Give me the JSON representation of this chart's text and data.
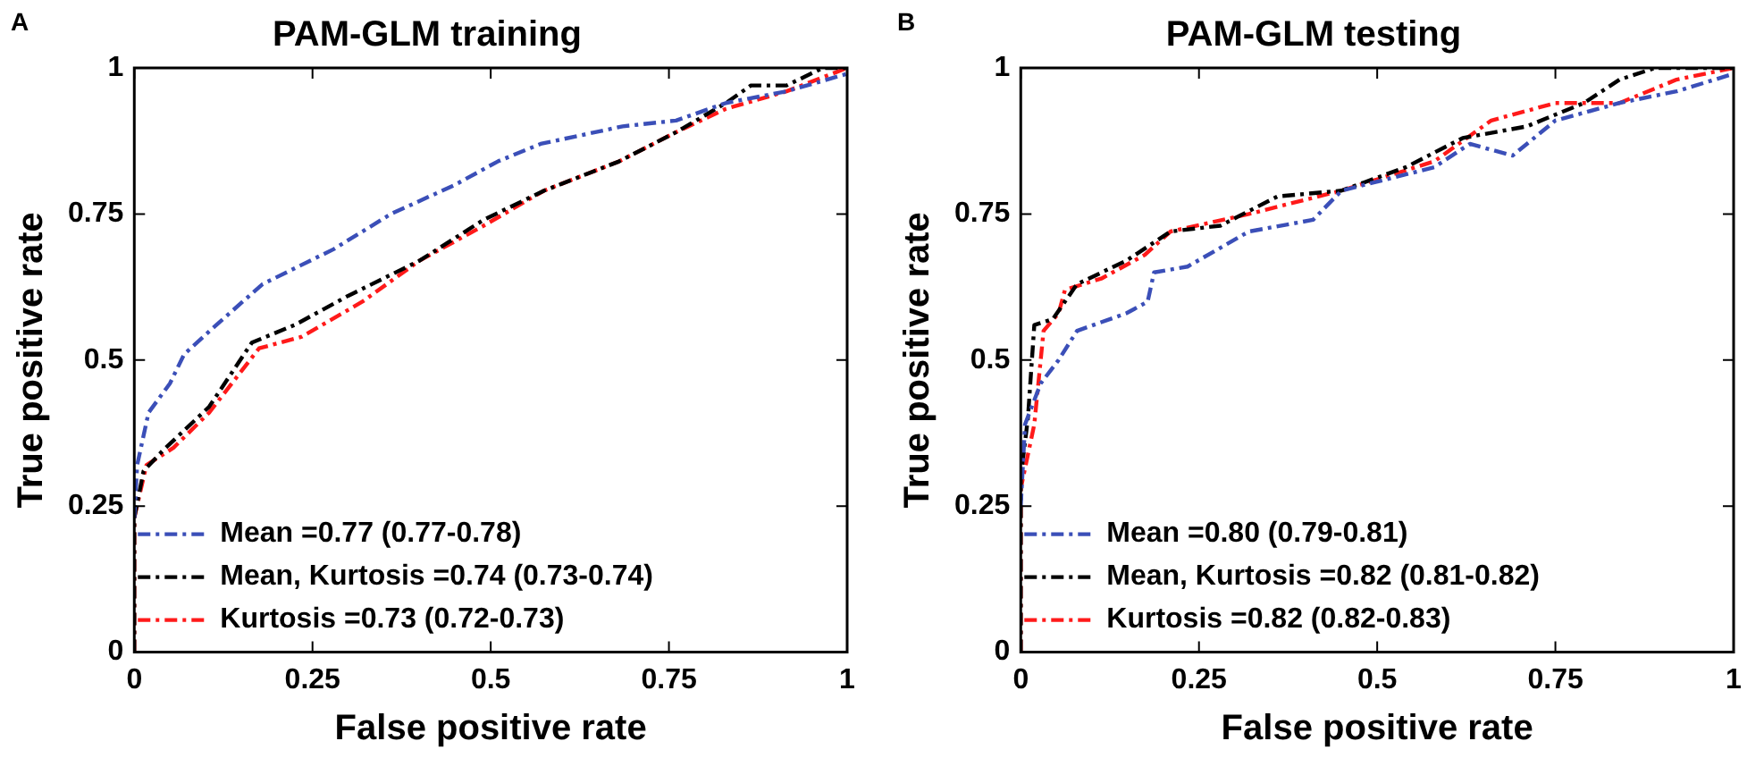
{
  "chart_data": [
    {
      "type": "line",
      "title": "PAM-GLM training",
      "xlabel": "False positive rate",
      "ylabel": "True positive rate",
      "annotations": [
        "A"
      ],
      "xlim": [
        0,
        1
      ],
      "ylim": [
        0,
        1
      ],
      "xticks": [
        0,
        0.25,
        0.5,
        0.75,
        1
      ],
      "yticks": [
        0,
        0.25,
        0.5,
        0.75,
        1
      ],
      "legend": "bottom left",
      "line_style": "dashed",
      "series": [
        {
          "name": "Mean =0.77 (0.77-0.78)",
          "color": "#3b4fb8",
          "x": [
            0,
            0.004,
            0.02,
            0.05,
            0.07,
            0.115,
            0.18,
            0.28,
            0.36,
            0.45,
            0.51,
            0.57,
            0.685,
            0.76,
            0.83,
            0.915,
            1
          ],
          "values": [
            0.23,
            0.32,
            0.41,
            0.46,
            0.51,
            0.56,
            0.63,
            0.69,
            0.75,
            0.8,
            0.84,
            0.87,
            0.9,
            0.91,
            0.94,
            0.96,
            0.99
          ]
        },
        {
          "name": "Mean, Kurtosis =0.74 (0.73-0.74)",
          "color": "#000000",
          "x": [
            0,
            0,
            0.013,
            0.04,
            0.105,
            0.165,
            0.225,
            0.3,
            0.4,
            0.49,
            0.575,
            0.68,
            0.76,
            0.83,
            0.865,
            0.915,
            0.966,
            1
          ],
          "values": [
            0,
            0.23,
            0.31,
            0.345,
            0.42,
            0.53,
            0.56,
            0.61,
            0.67,
            0.74,
            0.79,
            0.84,
            0.89,
            0.94,
            0.97,
            0.97,
            1,
            1
          ]
        },
        {
          "name": "Kurtosis =0.73 (0.72-0.73)",
          "color": "#ff1a1a",
          "x": [
            0,
            0,
            0.017,
            0.055,
            0.105,
            0.175,
            0.235,
            0.32,
            0.4,
            0.49,
            0.575,
            0.68,
            0.76,
            0.83,
            0.915,
            1
          ],
          "values": [
            0,
            0.23,
            0.32,
            0.35,
            0.41,
            0.52,
            0.54,
            0.6,
            0.67,
            0.73,
            0.79,
            0.84,
            0.89,
            0.93,
            0.96,
            1
          ]
        }
      ]
    },
    {
      "type": "line",
      "title": "PAM-GLM testing",
      "xlabel": "False positive rate",
      "ylabel": "True positive rate",
      "annotations": [
        "B"
      ],
      "xlim": [
        0,
        1
      ],
      "ylim": [
        0,
        1
      ],
      "xticks": [
        0,
        0.25,
        0.5,
        0.75,
        1
      ],
      "yticks": [
        0,
        0.25,
        0.5,
        0.75,
        1
      ],
      "legend": "bottom left",
      "line_style": "dashed",
      "series": [
        {
          "name": "Mean =0.80 (0.79-0.81)",
          "color": "#3b4fb8",
          "x": [
            0,
            0.006,
            0.028,
            0.053,
            0.079,
            0.148,
            0.178,
            0.187,
            0.234,
            0.32,
            0.41,
            0.45,
            0.58,
            0.63,
            0.69,
            0.75,
            0.84,
            0.92,
            1
          ],
          "values": [
            0.25,
            0.39,
            0.46,
            0.5,
            0.55,
            0.58,
            0.6,
            0.65,
            0.66,
            0.72,
            0.74,
            0.79,
            0.83,
            0.87,
            0.85,
            0.91,
            0.94,
            0.96,
            0.99
          ]
        },
        {
          "name": "Mean, Kurtosis =0.82 (0.81-0.82)",
          "color": "#000000",
          "x": [
            0,
            0,
            0.01,
            0.019,
            0.045,
            0.079,
            0.148,
            0.21,
            0.28,
            0.36,
            0.45,
            0.54,
            0.62,
            0.71,
            0.79,
            0.84,
            0.89,
            1
          ],
          "values": [
            0,
            0.3,
            0.4,
            0.56,
            0.57,
            0.63,
            0.67,
            0.72,
            0.73,
            0.78,
            0.79,
            0.83,
            0.88,
            0.9,
            0.94,
            0.98,
            1,
            1
          ]
        },
        {
          "name": "Kurtosis =0.82 (0.82-0.83)",
          "color": "#ff1a1a",
          "x": [
            0,
            0,
            0.019,
            0.032,
            0.053,
            0.062,
            0.114,
            0.174,
            0.21,
            0.32,
            0.45,
            0.58,
            0.66,
            0.75,
            0.84,
            0.92,
            1
          ],
          "values": [
            0,
            0.28,
            0.39,
            0.55,
            0.58,
            0.62,
            0.64,
            0.68,
            0.72,
            0.75,
            0.79,
            0.84,
            0.91,
            0.94,
            0.94,
            0.98,
            1
          ]
        }
      ]
    }
  ]
}
